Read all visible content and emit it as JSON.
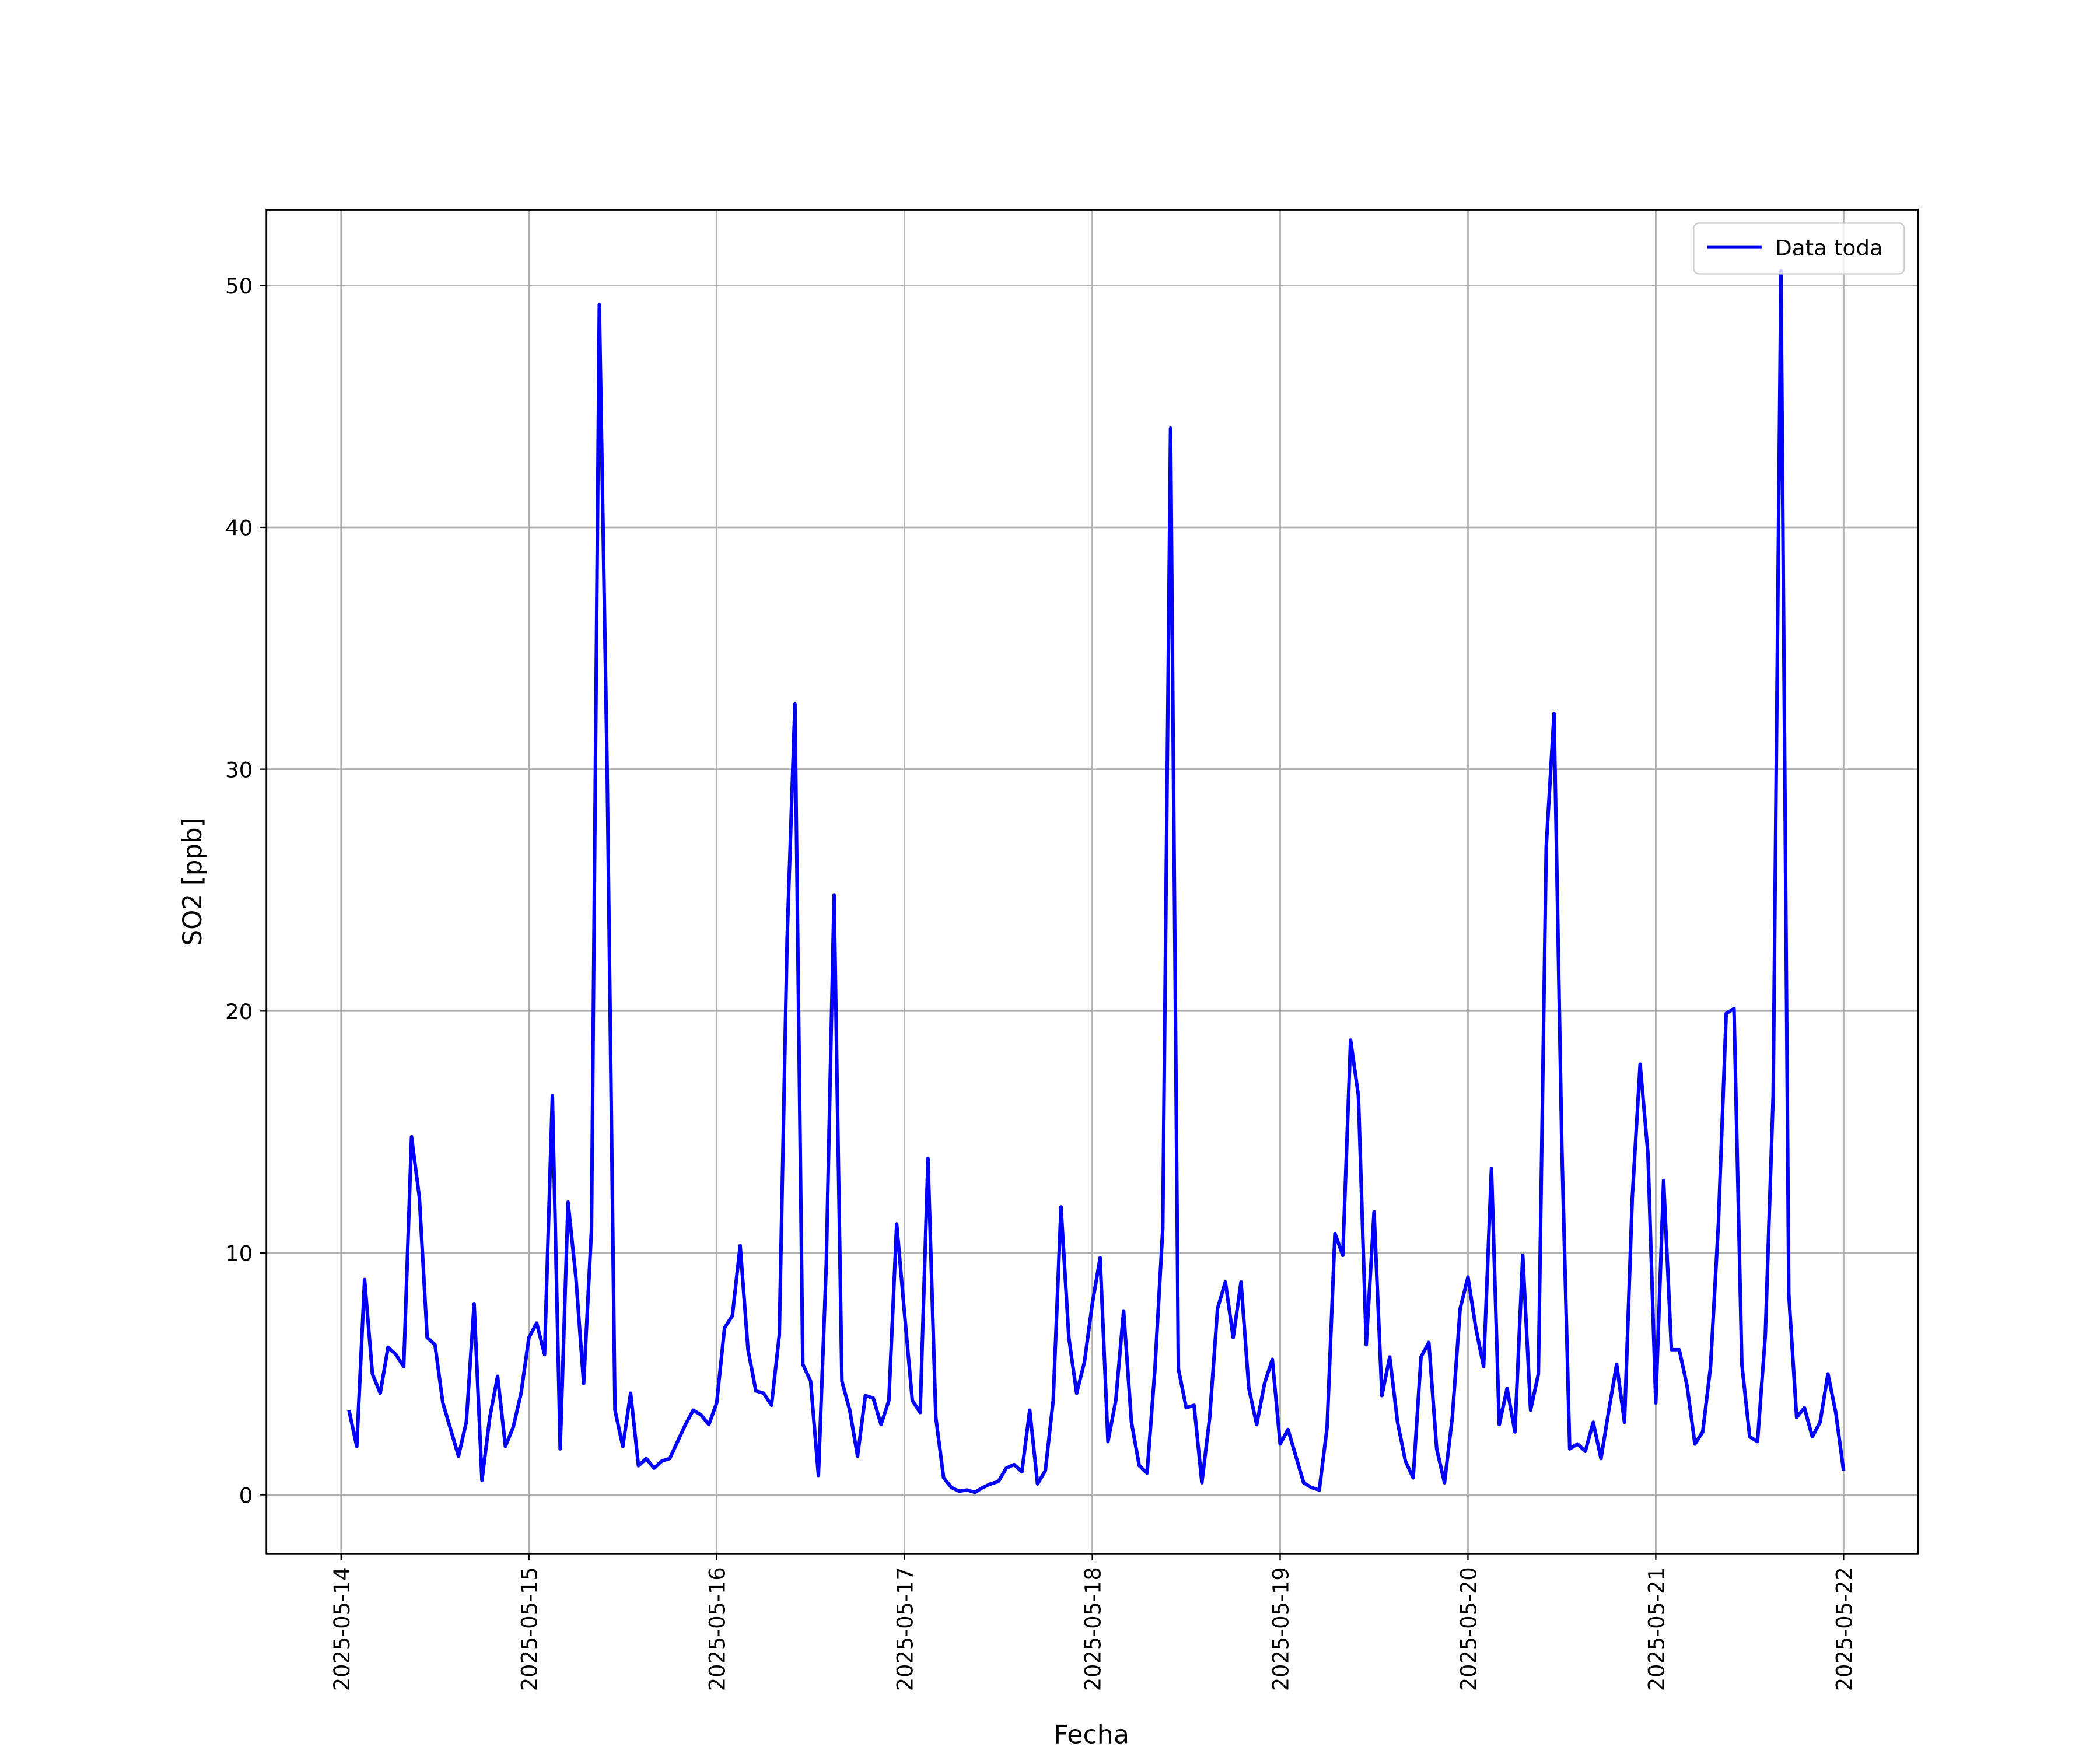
{
  "chart_data": {
    "type": "line",
    "xlabel": "Fecha",
    "ylabel": "SO2 [ppb]",
    "x": [
      "2025-05-14 01:00",
      "2025-05-14 02:00",
      "2025-05-14 03:00",
      "2025-05-14 04:00",
      "2025-05-14 05:00",
      "2025-05-14 06:00",
      "2025-05-14 07:00",
      "2025-05-14 08:00",
      "2025-05-14 09:00",
      "2025-05-14 10:00",
      "2025-05-14 11:00",
      "2025-05-14 12:00",
      "2025-05-14 13:00",
      "2025-05-14 14:00",
      "2025-05-14 15:00",
      "2025-05-14 16:00",
      "2025-05-14 17:00",
      "2025-05-14 18:00",
      "2025-05-14 19:00",
      "2025-05-14 20:00",
      "2025-05-14 21:00",
      "2025-05-14 22:00",
      "2025-05-14 23:00",
      "2025-05-15 00:00",
      "2025-05-15 01:00",
      "2025-05-15 02:00",
      "2025-05-15 03:00",
      "2025-05-15 04:00",
      "2025-05-15 05:00",
      "2025-05-15 06:00",
      "2025-05-15 07:00",
      "2025-05-15 08:00",
      "2025-05-15 09:00",
      "2025-05-15 10:00",
      "2025-05-15 11:00",
      "2025-05-15 12:00",
      "2025-05-15 13:00",
      "2025-05-15 14:00",
      "2025-05-15 15:00",
      "2025-05-15 16:00",
      "2025-05-15 17:00",
      "2025-05-15 18:00",
      "2025-05-15 19:00",
      "2025-05-15 20:00",
      "2025-05-15 21:00",
      "2025-05-15 22:00",
      "2025-05-15 23:00",
      "2025-05-16 00:00",
      "2025-05-16 01:00",
      "2025-05-16 02:00",
      "2025-05-16 03:00",
      "2025-05-16 04:00",
      "2025-05-16 05:00",
      "2025-05-16 06:00",
      "2025-05-16 07:00",
      "2025-05-16 08:00",
      "2025-05-16 09:00",
      "2025-05-16 10:00",
      "2025-05-16 11:00",
      "2025-05-16 12:00",
      "2025-05-16 13:00",
      "2025-05-16 14:00",
      "2025-05-16 15:00",
      "2025-05-16 16:00",
      "2025-05-16 17:00",
      "2025-05-16 18:00",
      "2025-05-16 19:00",
      "2025-05-16 20:00",
      "2025-05-16 21:00",
      "2025-05-16 22:00",
      "2025-05-16 23:00",
      "2025-05-17 00:00",
      "2025-05-17 01:00",
      "2025-05-17 02:00",
      "2025-05-17 03:00",
      "2025-05-17 04:00",
      "2025-05-17 05:00",
      "2025-05-17 06:00",
      "2025-05-17 07:00",
      "2025-05-17 08:00",
      "2025-05-17 09:00",
      "2025-05-17 10:00",
      "2025-05-17 11:00",
      "2025-05-17 12:00",
      "2025-05-17 13:00",
      "2025-05-17 14:00",
      "2025-05-17 15:00",
      "2025-05-17 16:00",
      "2025-05-17 17:00",
      "2025-05-17 18:00",
      "2025-05-17 19:00",
      "2025-05-17 20:00",
      "2025-05-17 21:00",
      "2025-05-17 22:00",
      "2025-05-17 23:00",
      "2025-05-18 00:00",
      "2025-05-18 01:00",
      "2025-05-18 02:00",
      "2025-05-18 03:00",
      "2025-05-18 04:00",
      "2025-05-18 05:00",
      "2025-05-18 06:00",
      "2025-05-18 07:00",
      "2025-05-18 08:00",
      "2025-05-18 09:00",
      "2025-05-18 10:00",
      "2025-05-18 11:00",
      "2025-05-18 12:00",
      "2025-05-18 13:00",
      "2025-05-18 14:00",
      "2025-05-18 15:00",
      "2025-05-18 16:00",
      "2025-05-18 17:00",
      "2025-05-18 18:00",
      "2025-05-18 19:00",
      "2025-05-18 20:00",
      "2025-05-18 21:00",
      "2025-05-18 22:00",
      "2025-05-18 23:00",
      "2025-05-19 00:00",
      "2025-05-19 01:00",
      "2025-05-19 02:00",
      "2025-05-19 03:00",
      "2025-05-19 04:00",
      "2025-05-19 05:00",
      "2025-05-19 06:00",
      "2025-05-19 07:00",
      "2025-05-19 08:00",
      "2025-05-19 09:00",
      "2025-05-19 10:00",
      "2025-05-19 11:00",
      "2025-05-19 12:00",
      "2025-05-19 13:00",
      "2025-05-19 14:00",
      "2025-05-19 15:00",
      "2025-05-19 16:00",
      "2025-05-19 17:00",
      "2025-05-19 18:00",
      "2025-05-19 19:00",
      "2025-05-19 20:00",
      "2025-05-19 21:00",
      "2025-05-19 22:00",
      "2025-05-19 23:00",
      "2025-05-20 00:00",
      "2025-05-20 01:00",
      "2025-05-20 02:00",
      "2025-05-20 03:00",
      "2025-05-20 04:00",
      "2025-05-20 05:00",
      "2025-05-20 06:00",
      "2025-05-20 07:00",
      "2025-05-20 08:00",
      "2025-05-20 09:00",
      "2025-05-20 10:00",
      "2025-05-20 11:00",
      "2025-05-20 12:00",
      "2025-05-20 13:00",
      "2025-05-20 14:00",
      "2025-05-20 15:00",
      "2025-05-20 16:00",
      "2025-05-20 17:00",
      "2025-05-20 18:00",
      "2025-05-20 19:00",
      "2025-05-20 20:00",
      "2025-05-20 21:00",
      "2025-05-20 22:00",
      "2025-05-20 23:00",
      "2025-05-21 00:00",
      "2025-05-21 01:00",
      "2025-05-21 02:00",
      "2025-05-21 03:00",
      "2025-05-21 04:00",
      "2025-05-21 05:00",
      "2025-05-21 06:00",
      "2025-05-21 07:00",
      "2025-05-21 08:00",
      "2025-05-21 09:00",
      "2025-05-21 10:00",
      "2025-05-21 11:00",
      "2025-05-21 12:00",
      "2025-05-21 13:00",
      "2025-05-21 14:00",
      "2025-05-21 15:00",
      "2025-05-21 16:00",
      "2025-05-21 17:00",
      "2025-05-21 18:00",
      "2025-05-21 19:00",
      "2025-05-21 20:00",
      "2025-05-21 21:00",
      "2025-05-21 22:00",
      "2025-05-21 23:00",
      "2025-05-22 00:00"
    ],
    "series": [
      {
        "name": "Data toda",
        "color": "#0000ff",
        "values": [
          3.5,
          2.0,
          8.9,
          5.0,
          4.2,
          6.1,
          5.8,
          5.3,
          14.8,
          12.3,
          6.5,
          6.2,
          3.8,
          2.7,
          1.6,
          3.0,
          7.9,
          0.6,
          3.2,
          4.9,
          2.0,
          2.8,
          4.2,
          6.5,
          7.1,
          5.8,
          16.5,
          1.9,
          12.1,
          9.0,
          4.6,
          11.0,
          49.2,
          30.0,
          3.5,
          2.0,
          4.2,
          1.2,
          1.5,
          1.1,
          1.4,
          1.5,
          2.2,
          2.9,
          3.5,
          3.3,
          2.9,
          3.8,
          6.9,
          7.4,
          10.3,
          6.0,
          4.3,
          4.2,
          3.7,
          6.6,
          23.0,
          32.7,
          5.4,
          4.7,
          0.8,
          9.5,
          24.8,
          4.7,
          3.5,
          1.6,
          4.1,
          4.0,
          2.9,
          3.9,
          11.2,
          7.5,
          3.9,
          3.4,
          13.9,
          3.2,
          0.7,
          0.3,
          0.15,
          0.2,
          0.1,
          0.3,
          0.45,
          0.55,
          1.1,
          1.25,
          0.95,
          3.5,
          0.45,
          1.0,
          3.9,
          11.9,
          6.5,
          4.2,
          5.5,
          7.9,
          9.8,
          2.2,
          3.9,
          7.6,
          3.0,
          1.2,
          0.9,
          5.2,
          11.0,
          44.1,
          5.2,
          3.6,
          3.7,
          0.5,
          3.2,
          7.7,
          8.8,
          6.5,
          8.8,
          4.4,
          2.9,
          4.6,
          5.6,
          2.1,
          2.7,
          1.6,
          0.5,
          0.3,
          0.2,
          2.8,
          10.8,
          9.9,
          18.8,
          16.5,
          6.2,
          11.7,
          4.1,
          5.7,
          3.0,
          1.4,
          0.7,
          5.7,
          6.3,
          1.9,
          0.5,
          3.2,
          7.7,
          9.0,
          6.9,
          5.3,
          13.5,
          2.9,
          4.4,
          2.6,
          9.9,
          3.5,
          5.0,
          26.8,
          32.3,
          14.3,
          1.9,
          2.1,
          1.8,
          3.0,
          1.5,
          3.5,
          5.4,
          3.0,
          12.3,
          17.8,
          14.1,
          3.8,
          13.0,
          6.0,
          6.0,
          4.5,
          2.1,
          2.6,
          5.3,
          11.2,
          19.9,
          20.1,
          5.4,
          2.4,
          2.2,
          6.6,
          16.5,
          50.6,
          8.3,
          3.2,
          3.6,
          2.4,
          3.0,
          5.0,
          3.4,
          1.0
        ]
      }
    ],
    "xlim": [
      "2025-05-13 14:27",
      "2025-05-22 09:30"
    ],
    "xticks": [
      "2025-05-14",
      "2025-05-15",
      "2025-05-16",
      "2025-05-17",
      "2025-05-18",
      "2025-05-19",
      "2025-05-20",
      "2025-05-21",
      "2025-05-22"
    ],
    "ylim": [
      -2.43,
      53.13
    ],
    "yticks": [
      0,
      10,
      20,
      30,
      40,
      50
    ],
    "grid": true,
    "legend": "upper right"
  }
}
